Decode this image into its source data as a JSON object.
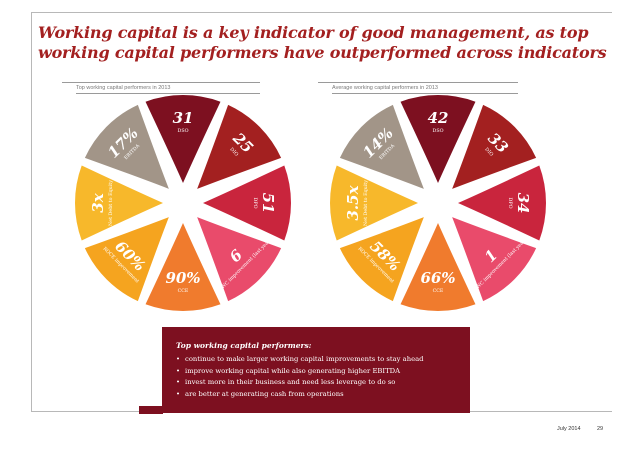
{
  "title": {
    "line1": "Working capital is a key indicator of good management, as top",
    "line2": "working capital performers have outperformed across indicators"
  },
  "panels": [
    {
      "label": "Top working capital performers in 2013",
      "segments": [
        {
          "value": "31",
          "caption": "DSO",
          "color": "#7d1020"
        },
        {
          "value": "25",
          "caption": "DIO",
          "color": "#a32020"
        },
        {
          "value": "51",
          "caption": "DPO",
          "color": "#c9253d"
        },
        {
          "value": "6",
          "caption": "DWC improvement (last year)",
          "color": "#e94b6b"
        },
        {
          "value": "90%",
          "caption": "CCE",
          "color": "#f07b2d"
        },
        {
          "value": "60%",
          "caption": "ROCE improvement",
          "color": "#f5a41f"
        },
        {
          "value": "3x",
          "caption": "Net Debt to Equity",
          "color": "#f7b82b"
        },
        {
          "value": "17%",
          "caption": "EBITDA",
          "color": "#a29588"
        }
      ]
    },
    {
      "label": "Average working capital performers in 2013",
      "segments": [
        {
          "value": "42",
          "caption": "DSO",
          "color": "#7d1020"
        },
        {
          "value": "33",
          "caption": "DIO",
          "color": "#a32020"
        },
        {
          "value": "34",
          "caption": "DPO",
          "color": "#c9253d"
        },
        {
          "value": "1",
          "caption": "DWC improvement (last year)",
          "color": "#e94b6b"
        },
        {
          "value": "66%",
          "caption": "CCE",
          "color": "#f07b2d"
        },
        {
          "value": "58%",
          "caption": "ROCE improvement",
          "color": "#f5a41f"
        },
        {
          "value": "3.5x",
          "caption": "Net Debt to Equity",
          "color": "#f7b82b"
        },
        {
          "value": "14%",
          "caption": "EBITDA",
          "color": "#a29588"
        }
      ]
    }
  ],
  "info_box": {
    "title": "Top working capital performers:",
    "items": [
      "continue to make larger working capital improvements to stay ahead",
      "improve working capital while also generating higher EBITDA",
      "invest more in their business and need less leverage to do so",
      "are better at generating cash from operations"
    ]
  },
  "footer": {
    "date": "July 2014",
    "page": "29"
  }
}
